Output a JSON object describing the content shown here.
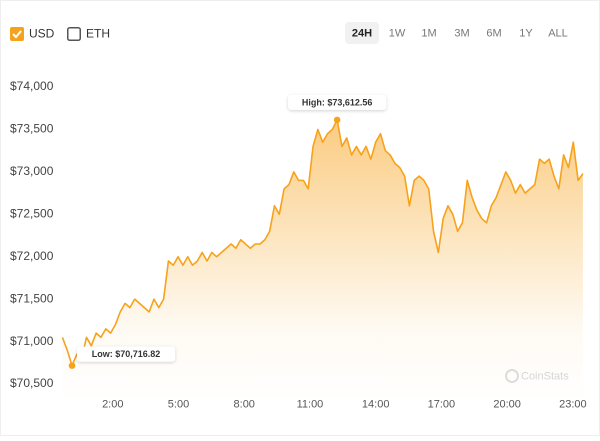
{
  "controls": {
    "currencies": [
      {
        "label": "USD",
        "checked": true
      },
      {
        "label": "ETH",
        "checked": false
      }
    ],
    "ranges": [
      "24H",
      "1W",
      "1M",
      "3M",
      "6M",
      "1Y",
      "ALL"
    ],
    "selected_range": "24H"
  },
  "watermark": "CoinStats",
  "chart_data": {
    "type": "line",
    "color": "#f7a21b",
    "fill": true,
    "annotations": {
      "high": "High: $73,612.56",
      "low": "Low: $70,716.82"
    },
    "x": [
      -0.3,
      -0.08,
      0.14,
      0.36,
      0.58,
      0.8,
      1.02,
      1.24,
      1.46,
      1.68,
      1.9,
      2.12,
      2.34,
      2.56,
      2.78,
      3,
      3.22,
      3.44,
      3.66,
      3.88,
      4.1,
      4.32,
      4.54,
      4.76,
      4.98,
      5.2,
      5.42,
      5.64,
      5.86,
      6.08,
      6.3,
      6.52,
      6.74,
      6.96,
      7.18,
      7.4,
      7.62,
      7.84,
      8.06,
      8.28,
      8.5,
      8.72,
      8.94,
      9.16,
      9.38,
      9.6,
      9.82,
      10.04,
      10.26,
      10.48,
      10.7,
      10.92,
      11.14,
      11.36,
      11.58,
      11.8,
      12.02,
      12.24,
      12.46,
      12.68,
      12.9,
      13.12,
      13.34,
      13.56,
      13.78,
      14,
      14.22,
      14.44,
      14.66,
      14.88,
      15.1,
      15.32,
      15.54,
      15.76,
      15.98,
      16.2,
      16.42,
      16.64,
      16.86,
      17.08,
      17.3,
      17.52,
      17.74,
      17.96,
      18.18,
      18.4,
      18.62,
      18.84,
      19.06,
      19.28,
      19.5,
      19.72,
      19.94,
      20.16,
      20.38,
      20.6,
      20.82,
      21.04,
      21.26,
      21.48,
      21.7,
      21.92,
      22.14,
      22.36,
      22.58,
      22.8,
      23.02,
      23.24,
      23.46
    ],
    "values": [
      71050,
      70900,
      70716.82,
      70850,
      70800,
      71050,
      70950,
      71100,
      71050,
      71150,
      71100,
      71200,
      71350,
      71450,
      71400,
      71500,
      71450,
      71400,
      71350,
      71500,
      71400,
      71500,
      71950,
      71900,
      72000,
      71900,
      72000,
      71900,
      71950,
      72050,
      71950,
      72050,
      72000,
      72050,
      72100,
      72150,
      72100,
      72200,
      72150,
      72100,
      72150,
      72150,
      72200,
      72300,
      72600,
      72500,
      72800,
      72850,
      73000,
      72900,
      72900,
      72800,
      73300,
      73500,
      73350,
      73450,
      73500,
      73612.56,
      73300,
      73400,
      73200,
      73300,
      73200,
      73300,
      73150,
      73350,
      73450,
      73250,
      73200,
      73100,
      73050,
      72950,
      72600,
      72900,
      72950,
      72900,
      72800,
      72300,
      72050,
      72450,
      72600,
      72500,
      72300,
      72400,
      72900,
      72700,
      72550,
      72450,
      72400,
      72600,
      72700,
      72850,
      73000,
      72900,
      72750,
      72850,
      72750,
      72800,
      72850,
      73150,
      73100,
      73150,
      72950,
      72800,
      73200,
      73050,
      73350,
      72900,
      72980
    ],
    "xlim": [
      -0.3,
      23.6
    ],
    "xticks": [
      {
        "value": 2,
        "label": "2:00"
      },
      {
        "value": 5,
        "label": "5:00"
      },
      {
        "value": 8,
        "label": "8:00"
      },
      {
        "value": 11,
        "label": "11:00"
      },
      {
        "value": 14,
        "label": "14:00"
      },
      {
        "value": 17,
        "label": "17:00"
      },
      {
        "value": 20,
        "label": "20:00"
      },
      {
        "value": 23,
        "label": "23:00"
      }
    ],
    "ylim": [
      70400,
      74400
    ],
    "yticks": [
      {
        "value": 70500,
        "label": "$70,500"
      },
      {
        "value": 71000,
        "label": "$71,000"
      },
      {
        "value": 71500,
        "label": "$71,500"
      },
      {
        "value": 72000,
        "label": "$72,000"
      },
      {
        "value": 72500,
        "label": "$72,500"
      },
      {
        "value": 73000,
        "label": "$73,000"
      },
      {
        "value": 73500,
        "label": "$73,500"
      },
      {
        "value": 74000,
        "label": "$74,000"
      }
    ]
  }
}
